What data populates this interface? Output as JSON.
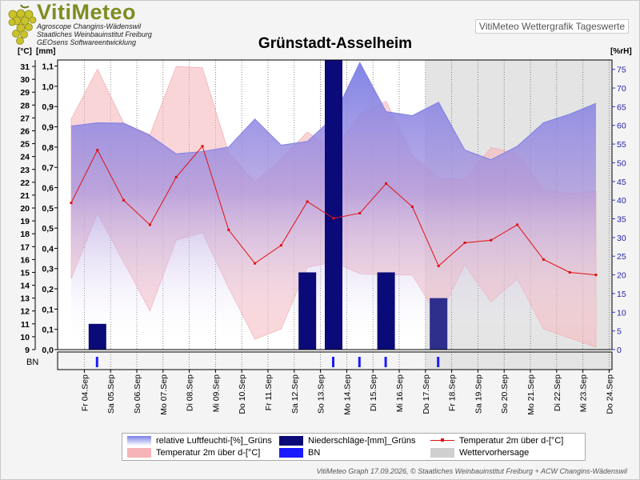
{
  "header": {
    "logo_title": "VitiMeteo",
    "logo_lines": [
      "Agroscope Changins-Wädenswil",
      "Staatliches Weinbauinstitut Freiburg",
      "GEOsens Softwareentwicklung"
    ],
    "label": "VitiMeteo Wettergrafik Tageswerte"
  },
  "footer": "VitiMeteo Graph 17.09.2026, © Staatliches Weinbauinstitut Freiburg + ACW Changins-Wädenswil",
  "colors": {
    "humidity": "#7b7fe6",
    "temp_band": "#f6b3b8",
    "temp_line": "#e01010",
    "precip": "#0a0a78",
    "bn": "#1a1aff",
    "forecast": "#e4e4e4"
  },
  "chart_data": {
    "type": "line",
    "title": "Grünstadt-Asselheim",
    "y_left_temp_label": "[°C]",
    "y_left_precip_label": "[mm]",
    "y_right_label": "[%rH]",
    "temp_ticks": [
      "9",
      "10",
      "11",
      "12",
      "13",
      "14",
      "15",
      "16",
      "17",
      "18",
      "19",
      "20",
      "21",
      "22",
      "23",
      "24",
      "25",
      "26",
      "27",
      "28",
      "29",
      "30",
      "31"
    ],
    "precip_ticks": [
      "0,0",
      "0,1",
      "0,1",
      "0,2",
      "0,3",
      "0,4",
      "0,5",
      "0,5",
      "0,6",
      "0,7",
      "0,8",
      "0,9",
      "0,9",
      "1,0",
      "1,1"
    ],
    "rh_ticks": [
      "0",
      "5",
      "10",
      "15",
      "20",
      "25",
      "30",
      "35",
      "40",
      "45",
      "50",
      "55",
      "60",
      "65",
      "70",
      "75"
    ],
    "temp_range": [
      9,
      31.5
    ],
    "precip_range": [
      0,
      1.125
    ],
    "rh_range": [
      0,
      77.5
    ],
    "x_labels": [
      "Fr 04.Sep",
      "Sa 05.Sep",
      "So 06.Sep",
      "Mo 07.Sep",
      "Di 08.Sep",
      "Mi 09.Sep",
      "Do 10.Sep",
      "Fr 11.Sep",
      "Sa 12.Sep",
      "So 13.Sep",
      "Mo 14.Sep",
      "Di 15.Sep",
      "Mi 16.Sep",
      "Do 17.Sep",
      "Fr 18.Sep",
      "Sa 19.Sep",
      "So 20.Sep",
      "Mo 21.Sep",
      "Di 22.Sep",
      "Mi 23.Sep",
      "Do 24.Sep"
    ],
    "temp_mean": [
      20.4,
      24.5,
      20.6,
      18.7,
      22.4,
      24.8,
      18.3,
      15.7,
      17.1,
      20.5,
      19.2,
      19.6,
      21.9,
      20.1,
      15.5,
      17.3,
      17.5,
      18.7,
      16.0,
      15.0,
      14.8
    ],
    "temp_max": [
      26.9,
      30.8,
      26.6,
      25.7,
      31.0,
      30.9,
      24.3,
      22.0,
      23.8,
      25.9,
      24.5,
      27.3,
      28.3,
      24.1,
      22.3,
      22.2,
      24.7,
      24.2,
      21.4,
      21.1,
      21.3
    ],
    "temp_min": [
      14.5,
      19.6,
      15.8,
      12.0,
      17.5,
      18.1,
      13.8,
      9.8,
      10.6,
      15.4,
      15.8,
      14.9,
      14.8,
      14.8,
      11.5,
      15.6,
      12.7,
      14.5,
      10.6,
      9.9,
      9.2
    ],
    "rh": [
      59.8,
      60.7,
      60.6,
      57.3,
      52.4,
      53.0,
      54.2,
      61.7,
      54.7,
      55.7,
      62.2,
      76.8,
      63.7,
      62.6,
      66.2,
      53.4,
      50.8,
      54.4,
      60.7,
      63.0,
      65.9
    ],
    "precip": [
      0,
      0.1,
      0,
      0,
      0,
      0,
      0,
      0,
      0,
      0.3,
      1.125,
      0,
      0.3,
      0,
      0.2,
      0,
      0,
      0,
      0,
      0,
      0
    ],
    "bn": [
      0,
      1,
      0,
      0,
      0,
      0,
      0,
      0,
      0,
      0,
      1,
      1,
      1,
      0,
      1,
      0,
      0,
      0,
      0,
      0,
      0
    ],
    "forecast_from": "Fr 18.Sep",
    "legend": [
      "relative Luftfeuchti-[%]_Grüns",
      "Niederschläge-[mm]_Grüns",
      "Temperatur 2m über d-[°C]",
      "Temperatur 2m über d-[°C]",
      "BN",
      "Wettervorhersage"
    ],
    "bn_label": "BN",
    "grid": true
  }
}
